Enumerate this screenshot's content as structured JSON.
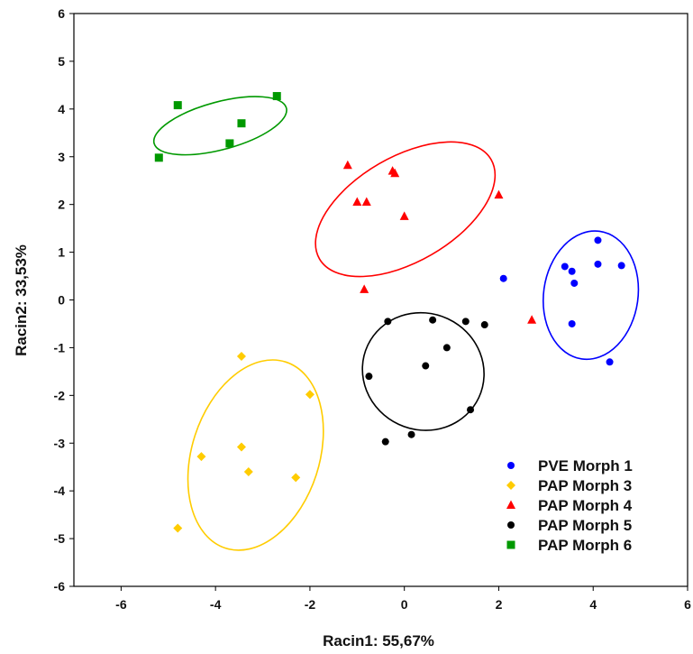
{
  "chart_data": {
    "type": "scatter",
    "xlabel": "Racin1: 55,67%",
    "ylabel": "Racin2: 33,53%",
    "xlim": [
      -7,
      6
    ],
    "ylim": [
      -6,
      6
    ],
    "xticks": [
      -6,
      -4,
      -2,
      0,
      2,
      4,
      6
    ],
    "yticks": [
      -6,
      -5,
      -4,
      -3,
      -2,
      -1,
      0,
      1,
      2,
      3,
      4,
      5,
      6
    ],
    "grid": false,
    "legend_position": "bottom-right",
    "series": [
      {
        "name": "PVE Morph 1",
        "color": "#0000ff",
        "marker": "circle",
        "points": [
          [
            4.1,
            1.25
          ],
          [
            3.4,
            0.7
          ],
          [
            3.55,
            0.6
          ],
          [
            4.1,
            0.75
          ],
          [
            4.6,
            0.72
          ],
          [
            3.6,
            0.35
          ],
          [
            2.1,
            0.45
          ],
          [
            3.55,
            -0.5
          ],
          [
            4.35,
            -1.3
          ]
        ],
        "ellipse": {
          "cx": 3.95,
          "cy": 0.1,
          "rx": 1.0,
          "ry": 1.35,
          "rotation": 8
        }
      },
      {
        "name": "PAP Morph 3",
        "color": "#ffcc00",
        "marker": "diamond",
        "points": [
          [
            -3.45,
            -1.18
          ],
          [
            -2.0,
            -1.98
          ],
          [
            -4.3,
            -3.28
          ],
          [
            -3.45,
            -3.08
          ],
          [
            -3.3,
            -3.6
          ],
          [
            -2.3,
            -3.72
          ],
          [
            -4.8,
            -4.78
          ]
        ],
        "ellipse": {
          "cx": -3.15,
          "cy": -3.25,
          "rx": 1.35,
          "ry": 2.05,
          "rotation": 18
        }
      },
      {
        "name": "PAP Morph 4",
        "color": "#ff0000",
        "marker": "triangle",
        "points": [
          [
            -1.2,
            2.82
          ],
          [
            -0.25,
            2.7
          ],
          [
            -0.2,
            2.65
          ],
          [
            -1.0,
            2.05
          ],
          [
            -0.8,
            2.05
          ],
          [
            0.0,
            1.75
          ],
          [
            2.0,
            2.2
          ],
          [
            -0.85,
            0.22
          ],
          [
            2.7,
            -0.42
          ]
        ],
        "ellipse": {
          "cx": 0.02,
          "cy": 1.9,
          "rx": 2.1,
          "ry": 1.1,
          "rotation": -30
        }
      },
      {
        "name": "PAP Morph 5",
        "color": "#000000",
        "marker": "circle",
        "points": [
          [
            -0.35,
            -0.45
          ],
          [
            0.6,
            -0.42
          ],
          [
            1.3,
            -0.45
          ],
          [
            1.7,
            -0.52
          ],
          [
            0.9,
            -1.0
          ],
          [
            0.45,
            -1.38
          ],
          [
            -0.75,
            -1.6
          ],
          [
            1.4,
            -2.3
          ],
          [
            0.15,
            -2.82
          ],
          [
            -0.4,
            -2.97
          ]
        ],
        "ellipse": {
          "cx": 0.4,
          "cy": -1.5,
          "rx": 1.3,
          "ry": 1.22,
          "rotation": 25
        }
      },
      {
        "name": "PAP Morph 6",
        "color": "#009900",
        "marker": "square",
        "points": [
          [
            -4.8,
            4.08
          ],
          [
            -2.7,
            4.27
          ],
          [
            -3.45,
            3.7
          ],
          [
            -3.7,
            3.28
          ],
          [
            -5.2,
            2.98
          ]
        ],
        "ellipse": {
          "cx": -3.9,
          "cy": 3.65,
          "rx": 1.45,
          "ry": 0.5,
          "rotation": -15
        }
      }
    ]
  }
}
